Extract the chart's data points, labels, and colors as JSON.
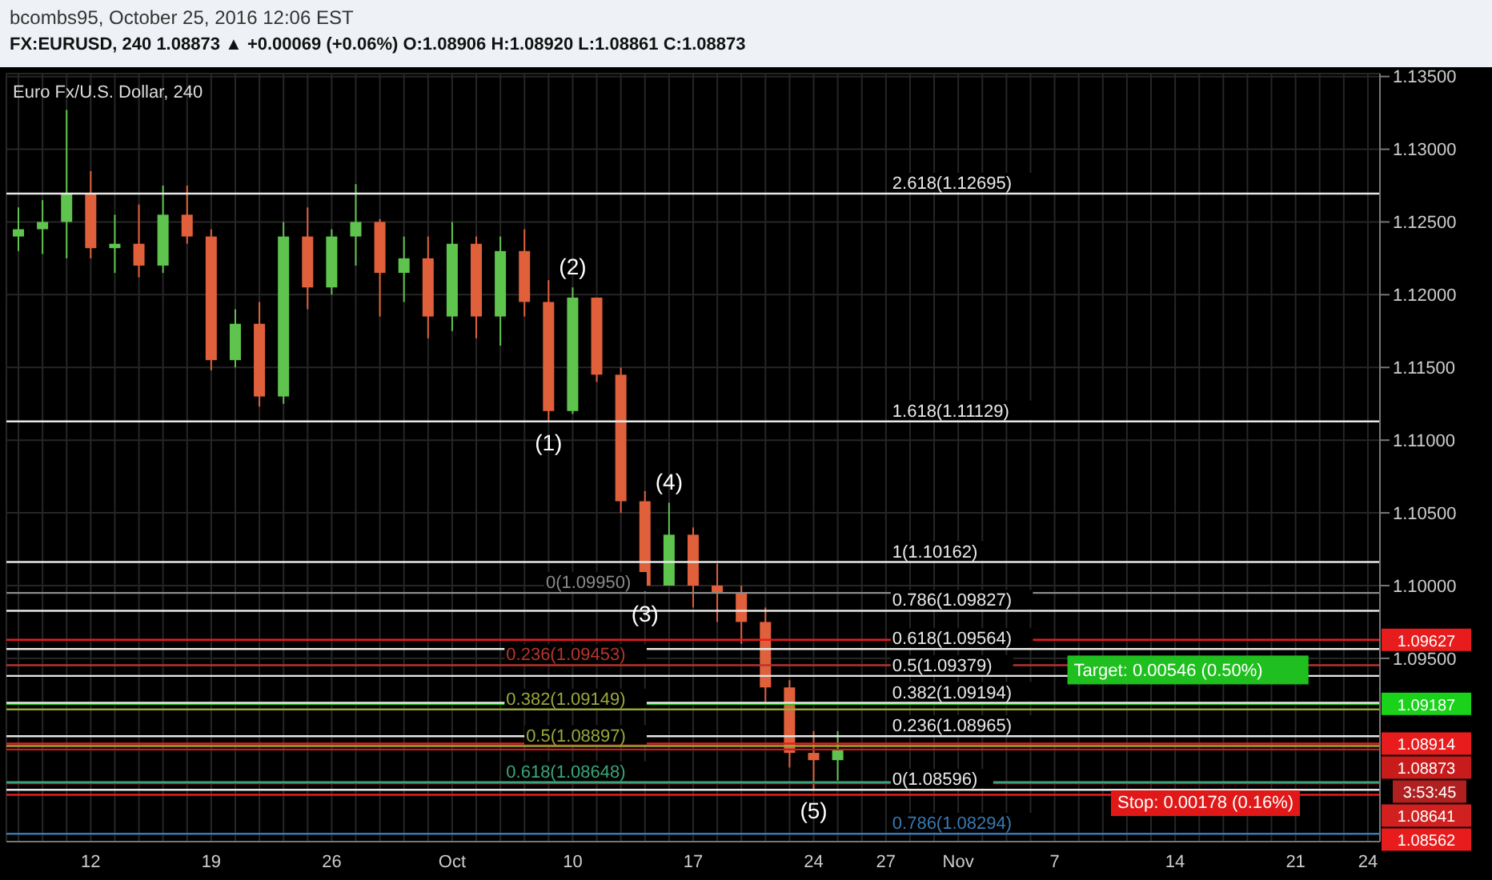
{
  "chart_data": {
    "type": "candlestick",
    "title": "bcombs95, October 25, 2016 12:06 EST",
    "subtitle": "FX:EURUSD, 240 1.08873 ▲ +0.00069 (+0.06%) O:1.08906 H:1.08920 L:1.08861 C:1.08873",
    "categories": [
      null,
      null,
      null,
      "12",
      null,
      null,
      null,
      null,
      "19",
      null,
      null,
      null,
      null,
      "26",
      null,
      null,
      null,
      null,
      "Oct",
      null,
      null,
      null,
      null,
      "10",
      null,
      null,
      null,
      null,
      "17",
      null,
      null,
      null,
      null,
      "24",
      null,
      null,
      "27",
      null,
      null,
      "Nov",
      null,
      null,
      null,
      "7",
      null,
      null,
      null,
      null,
      "14",
      null,
      null,
      null,
      null,
      "21",
      null,
      null,
      "24"
    ],
    "ohlc": [
      [
        1.124,
        1.126,
        1.123,
        1.1245
      ],
      [
        1.1245,
        1.1265,
        1.1228,
        1.125
      ],
      [
        1.125,
        1.1327,
        1.1225,
        1.127
      ],
      [
        1.127,
        1.1285,
        1.1225,
        1.1232
      ],
      [
        1.1232,
        1.1255,
        1.1215,
        1.1235
      ],
      [
        1.1235,
        1.1262,
        1.1212,
        1.122
      ],
      [
        1.122,
        1.1275,
        1.1215,
        1.1255
      ],
      [
        1.1255,
        1.1275,
        1.1235,
        1.124
      ],
      [
        1.124,
        1.1245,
        1.1148,
        1.1155
      ],
      [
        1.1155,
        1.119,
        1.115,
        1.118
      ],
      [
        1.118,
        1.1195,
        1.1123,
        1.113
      ],
      [
        1.113,
        1.125,
        1.1125,
        1.124
      ],
      [
        1.124,
        1.126,
        1.119,
        1.1205
      ],
      [
        1.1205,
        1.1245,
        1.12,
        1.124
      ],
      [
        1.124,
        1.1276,
        1.122,
        1.125
      ],
      [
        1.125,
        1.1252,
        1.1185,
        1.1215
      ],
      [
        1.1215,
        1.124,
        1.1195,
        1.1225
      ],
      [
        1.1225,
        1.124,
        1.117,
        1.1185
      ],
      [
        1.1185,
        1.125,
        1.1175,
        1.1235
      ],
      [
        1.1235,
        1.124,
        1.117,
        1.1185
      ],
      [
        1.1185,
        1.124,
        1.1165,
        1.123
      ],
      [
        1.123,
        1.1245,
        1.1185,
        1.1195
      ],
      [
        1.1195,
        1.121,
        1.1113,
        1.112
      ],
      [
        1.112,
        1.1205,
        1.1118,
        1.1198
      ],
      [
        1.1198,
        1.1198,
        1.114,
        1.1145
      ],
      [
        1.1145,
        1.115,
        1.105,
        1.1058
      ],
      [
        1.1058,
        1.1065,
        1.0995,
        1.1
      ],
      [
        1.1,
        1.1057,
        1.1,
        1.1035
      ],
      [
        1.1035,
        1.104,
        1.0985,
        1.1
      ],
      [
        1.1,
        1.1015,
        1.0975,
        1.0995
      ],
      [
        1.0995,
        1.1,
        1.096,
        1.0975
      ],
      [
        1.0975,
        1.0985,
        1.092,
        1.093
      ],
      [
        1.093,
        1.0935,
        1.0875,
        1.0885
      ],
      [
        1.0885,
        1.09,
        1.086,
        1.088
      ],
      [
        1.088,
        1.09,
        1.0866,
        1.0887
      ],
      null,
      null,
      null,
      null,
      null,
      null,
      null,
      null,
      null,
      null,
      null,
      null,
      null,
      null,
      null,
      null,
      null,
      null,
      null,
      null,
      null,
      null
    ],
    "colors": [
      "#5fc44e",
      "#5fc44e",
      "#5fc44e",
      "#e0603c",
      "#5fc44e",
      "#e0603c",
      "#5fc44e",
      "#e0603c",
      "#e0603c",
      "#5fc44e",
      "#e0603c",
      "#5fc44e",
      "#e0603c",
      "#5fc44e",
      "#5fc44e",
      "#e0603c",
      "#5fc44e",
      "#e0603c",
      "#5fc44e",
      "#e0603c",
      "#5fc44e",
      "#e0603c",
      "#e0603c",
      "#5fc44e",
      "#e0603c",
      "#e0603c",
      "#e0603c",
      "#5fc44e",
      "#e0603c",
      "#e0603c",
      "#e0603c",
      "#e0603c",
      "#e0603c",
      "#e0603c",
      "#5fc44e",
      null,
      null,
      null,
      null,
      null,
      null,
      null,
      null,
      null,
      null,
      null,
      null,
      null,
      null,
      null,
      null,
      null,
      null,
      null,
      null,
      null,
      null
    ],
    "ylim": [
      1.0824,
      1.1352
    ],
    "yticks": [
      {
        "value": 1.095,
        "label": "1.09500"
      },
      {
        "value": 1.1,
        "label": "1.10000"
      },
      {
        "value": 1.105,
        "label": "1.10500"
      },
      {
        "value": 1.11,
        "label": "1.11000"
      },
      {
        "value": 1.115,
        "label": "1.11500"
      },
      {
        "value": 1.12,
        "label": "1.12000"
      },
      {
        "value": 1.125,
        "label": "1.12500"
      },
      {
        "value": 1.13,
        "label": "1.13000"
      },
      {
        "value": 1.135,
        "label": "1.13500"
      }
    ],
    "grid": true,
    "ref_lines": [
      {
        "axis": "y",
        "value": 1.12695,
        "label": "2.618(1.12695)",
        "color": "#e8e8e8"
      },
      {
        "axis": "y",
        "value": 1.11129,
        "label": "1.618(1.11129)",
        "color": "#e8e8e8"
      },
      {
        "axis": "y",
        "value": 1.10162,
        "label": "1(1.10162)",
        "color": "#e8e8e8"
      },
      {
        "axis": "y",
        "value": 1.09827,
        "label": "0.786(1.09827)",
        "color": "#e8e8e8"
      },
      {
        "axis": "y",
        "value": 1.09564,
        "label": "0.618(1.09564)",
        "color": "#e8e8e8"
      },
      {
        "axis": "y",
        "value": 1.09379,
        "label": "0.5(1.09379)",
        "color": "#e8e8e8"
      },
      {
        "axis": "y",
        "value": 1.09194,
        "label": "0.382(1.09194)",
        "color": "#e8e8e8"
      },
      {
        "axis": "y",
        "value": 1.08965,
        "label": "0.236(1.08965)",
        "color": "#e8e8e8"
      },
      {
        "axis": "y",
        "value": 1.08596,
        "label": "0(1.08596)",
        "color": "#e8e8e8"
      },
      {
        "axis": "y",
        "value": 1.0995,
        "label": "0(1.09950)",
        "color": "#8a8a8a"
      },
      {
        "axis": "y",
        "value": 1.09453,
        "label": "0.236(1.09453)",
        "color": "#b8352a"
      },
      {
        "axis": "y",
        "value": 1.09149,
        "label": "0.382(1.09149)",
        "color": "#9aa63a"
      },
      {
        "axis": "y",
        "value": 1.08897,
        "label": "0.5(1.08897)",
        "color": "#9aa63a"
      },
      {
        "axis": "y",
        "value": 1.08648,
        "label": "0.618(1.08648)",
        "color": "#3aa57a"
      },
      {
        "axis": "y",
        "value": 1.08294,
        "label": "0.786(1.08294)",
        "color": "#3a78b0"
      },
      {
        "axis": "y",
        "value": 1.09627,
        "label": "1.09627",
        "color": "#e81c1c"
      },
      {
        "axis": "y",
        "value": 1.09187,
        "label": "1.09187",
        "color": "#19d219"
      },
      {
        "axis": "y",
        "value": 1.08914,
        "label": "1.08914",
        "color": "#e81c1c"
      },
      {
        "axis": "y",
        "value": 1.08873,
        "label": "1.08873",
        "color": "#c81c1c"
      },
      {
        "axis": "y",
        "value": 1.08641,
        "label": "1.08641",
        "color": "#d02020"
      },
      {
        "axis": "y",
        "value": 1.08562,
        "label": "1.08562",
        "color": "#e81c1c"
      }
    ],
    "annotations": [
      "Euro Fx/U.S. Dollar, 240",
      "3:53:45",
      "Stop: 0.00178 (0.16%)",
      {
        "text": "(1)",
        "y": 1.1113
      },
      {
        "text": "(2)",
        "y": 1.1205
      },
      {
        "text": "(3)",
        "y": 1.0995
      },
      {
        "text": "(4)",
        "y": 1.1057
      },
      {
        "text": "(5)",
        "y": 1.086
      },
      {
        "text": "Target: 0.00546 (0.50%)",
        "x": "7",
        "y": 1.0942
      }
    ],
    "legend": false
  }
}
